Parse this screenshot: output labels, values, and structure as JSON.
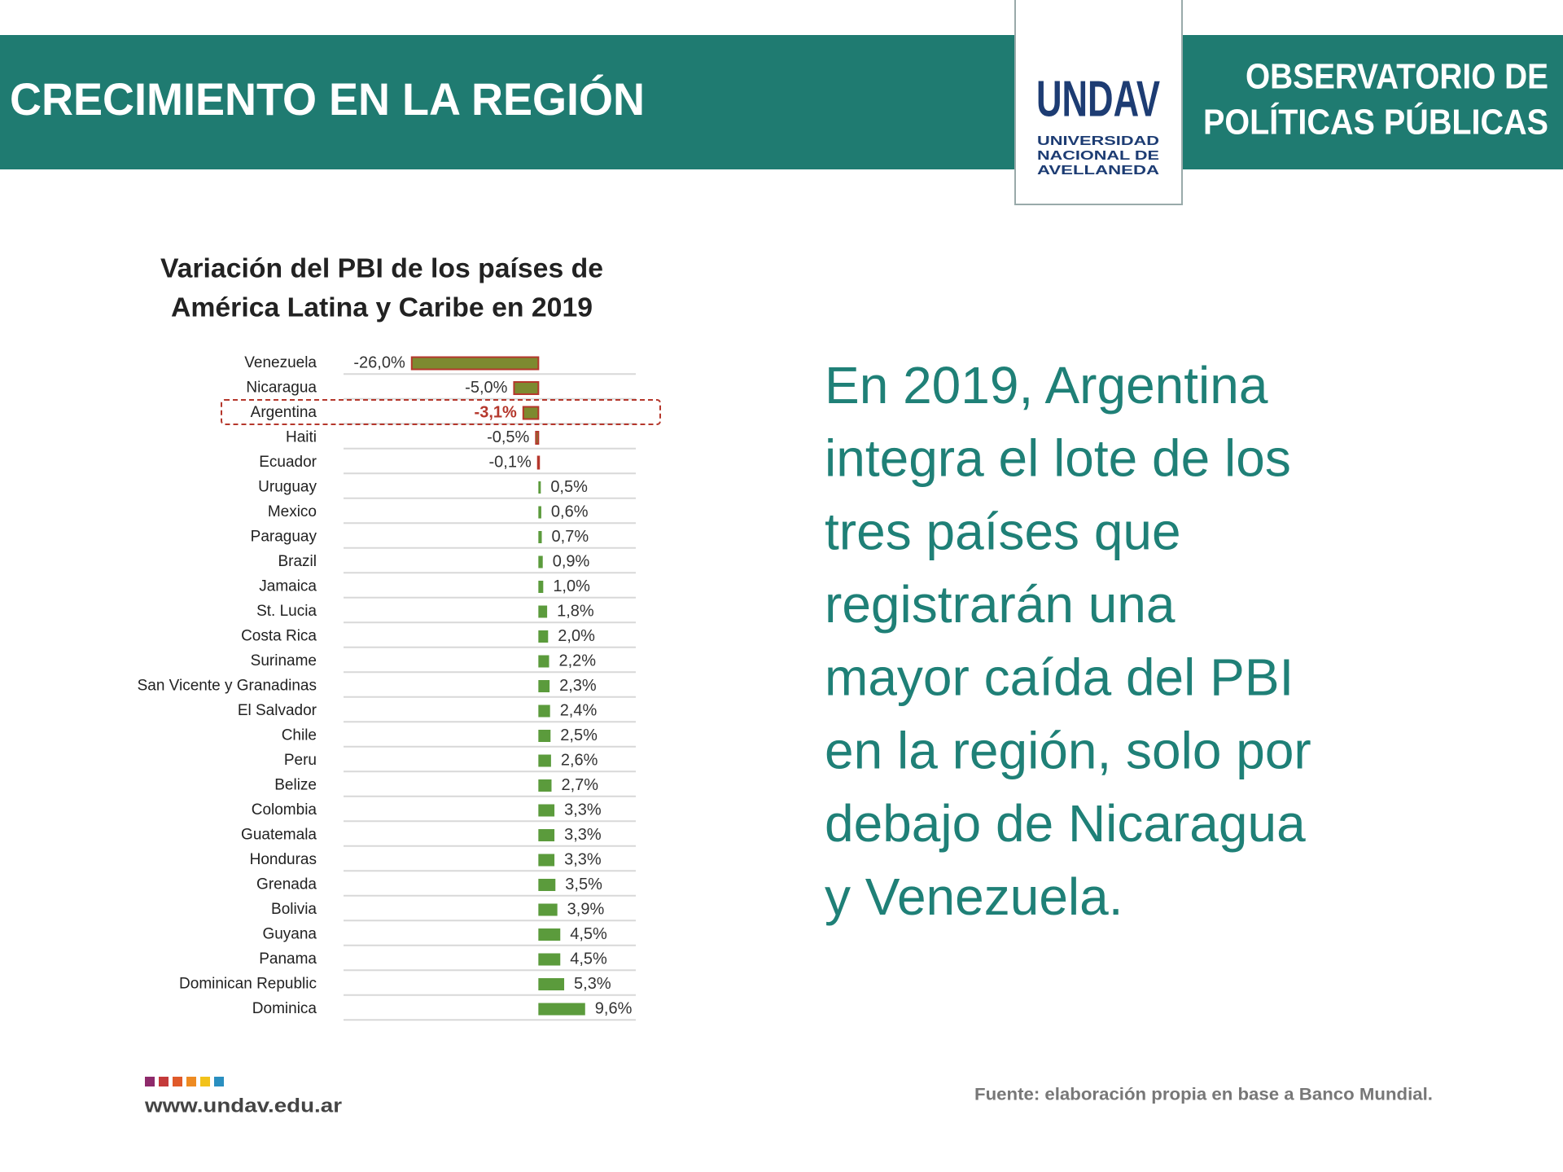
{
  "header": {
    "title": "CRECIMIENTO EN LA REGIÓN",
    "logo": {
      "name": "UNDAV",
      "lines": [
        "UNIVERSIDAD",
        "NACIONAL DE",
        "AVELLANEDA"
      ]
    },
    "right_title": [
      "OBSERVATORIO DE",
      "POLÍTICAS PÚBLICAS"
    ]
  },
  "chart_data": {
    "type": "bar",
    "orientation": "horizontal",
    "title": [
      "Variación del PBI de los países de",
      "América Latina y Caribe en 2019"
    ],
    "categories": [
      "Venezuela",
      "Nicaragua",
      "Argentina",
      "Haiti",
      "Ecuador",
      "Uruguay",
      "Mexico",
      "Paraguay",
      "Brazil",
      "Jamaica",
      "St. Lucia",
      "Costa Rica",
      "Suriname",
      "San Vicente y Granadinas",
      "El Salvador",
      "Chile",
      "Peru",
      "Belize",
      "Colombia",
      "Guatemala",
      "Honduras",
      "Grenada",
      "Bolivia",
      "Guyana",
      "Panama",
      "Dominican Republic",
      "Dominica"
    ],
    "values": [
      -26.0,
      -5.0,
      -3.1,
      -0.5,
      -0.1,
      0.5,
      0.6,
      0.7,
      0.9,
      1.0,
      1.8,
      2.0,
      2.2,
      2.3,
      2.4,
      2.5,
      2.6,
      2.7,
      3.3,
      3.3,
      3.3,
      3.5,
      3.9,
      4.5,
      4.5,
      5.3,
      9.6
    ],
    "value_labels": [
      "-26,0%",
      "-5,0%",
      "-3,1%",
      "-0,5%",
      "-0,1%",
      "0,5%",
      "0,6%",
      "0,7%",
      "0,9%",
      "1,0%",
      "1,8%",
      "2,0%",
      "2,2%",
      "2,3%",
      "2,4%",
      "2,5%",
      "2,6%",
      "2,7%",
      "3,3%",
      "3,3%",
      "3,3%",
      "3,5%",
      "3,9%",
      "4,5%",
      "4,5%",
      "5,3%",
      "9,6%"
    ],
    "color": "#5b9b3c",
    "negative_color": "#b5372c",
    "xlim": [
      -40,
      20
    ],
    "highlight": "Argentina"
  },
  "body_text": [
    "En 2019, Argentina",
    "integra el lote de los",
    "tres países que",
    "registrarán una",
    "mayor caída del PBI",
    "en la región, solo por",
    "debajo de Nicaragua",
    "y Venezuela."
  ],
  "footer": {
    "url": "www.undav.edu.ar",
    "source": "Fuente: elaboración propia en base a Banco Mundial."
  }
}
